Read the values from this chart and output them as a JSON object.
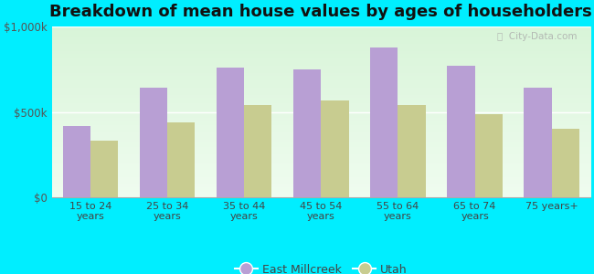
{
  "title": "Breakdown of mean house values by ages of householders",
  "categories": [
    "15 to 24\nyears",
    "25 to 34\nyears",
    "35 to 44\nyears",
    "45 to 54\nyears",
    "55 to 64\nyears",
    "65 to 74\nyears",
    "75 years+"
  ],
  "east_millcreek": [
    420000,
    640000,
    760000,
    750000,
    880000,
    770000,
    640000
  ],
  "utah": [
    330000,
    440000,
    540000,
    570000,
    540000,
    490000,
    400000
  ],
  "bar_color_em": "#b89fd4",
  "bar_color_utah": "#c8cc90",
  "background_outer": "#00eeff",
  "ylim": [
    0,
    1000000
  ],
  "yticks": [
    0,
    500000,
    1000000
  ],
  "ytick_labels": [
    "$0",
    "$500k",
    "$1,000k"
  ],
  "legend_em": "East Millcreek",
  "legend_utah": "Utah",
  "title_fontsize": 13,
  "bar_width": 0.36,
  "figsize": [
    6.5,
    3.0
  ],
  "dpi": 100
}
